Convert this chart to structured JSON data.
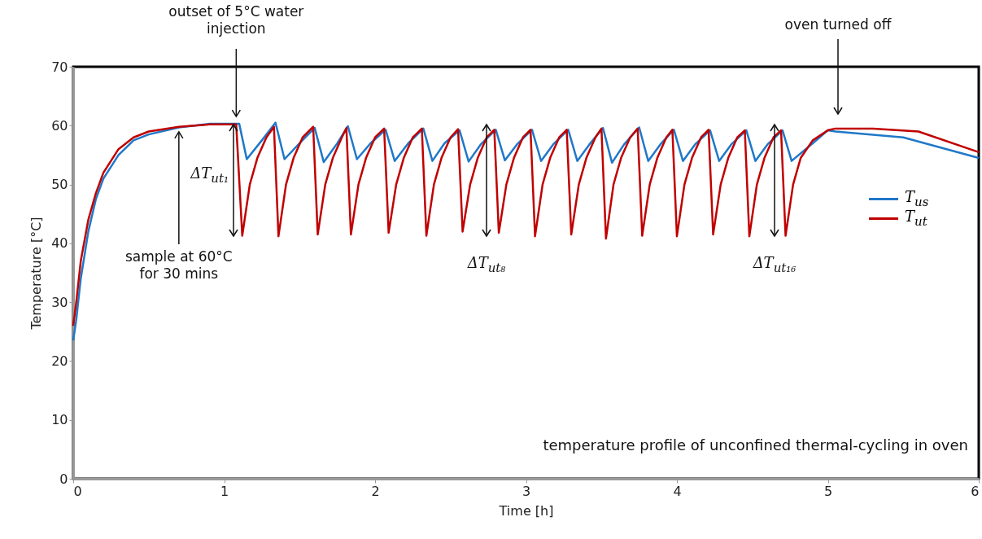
{
  "chart_data": {
    "type": "line",
    "xlabel": "Time [h]",
    "ylabel": "Temperature [°C]",
    "xlim": [
      0,
      6
    ],
    "xticks": [
      0,
      1,
      2,
      3,
      4,
      5,
      6
    ],
    "ylim": [
      0,
      70
    ],
    "yticks": [
      0,
      10,
      20,
      30,
      40,
      50,
      60,
      70
    ],
    "grid": false,
    "legend": "right",
    "line_style": "solid",
    "marker": "none",
    "series": [
      {
        "name": "T$_{us}$",
        "color": "#1f78c8",
        "x": [
          0,
          0.02,
          0.05,
          0.1,
          0.15,
          0.2,
          0.3,
          0.4,
          0.5,
          0.7,
          0.9,
          1.08,
          1.1,
          1.15,
          1.25,
          1.34,
          1.4,
          1.5,
          1.6,
          1.66,
          1.75,
          1.82,
          1.88,
          1.97,
          2.07,
          2.13,
          2.22,
          2.32,
          2.38,
          2.46,
          2.56,
          2.62,
          2.7,
          2.8,
          2.86,
          2.94,
          3.04,
          3.1,
          3.18,
          3.28,
          3.34,
          3.42,
          3.51,
          3.57,
          3.65,
          3.75,
          3.81,
          3.89,
          3.98,
          4.04,
          4.12,
          4.22,
          4.28,
          4.36,
          4.46,
          4.52,
          4.6,
          4.7,
          4.76,
          4.9,
          5.0,
          5.05,
          5.5,
          6.0
        ],
        "values": [
          23.5,
          27,
          34,
          42,
          47.5,
          51,
          55,
          57.5,
          58.5,
          59.7,
          60.3,
          60.3,
          60.3,
          54.3,
          57.5,
          60.5,
          54.3,
          57,
          59.6,
          53.8,
          57,
          59.9,
          54.3,
          57,
          59.3,
          54,
          57,
          59.5,
          54,
          57,
          59.2,
          53.9,
          56.8,
          59.3,
          54.1,
          56.8,
          59.3,
          54,
          56.8,
          59.3,
          54,
          56.8,
          59.6,
          53.7,
          56.8,
          59.7,
          54,
          56.8,
          59.3,
          54,
          56.8,
          59.2,
          54,
          56.8,
          59.2,
          54,
          56.8,
          59.2,
          54,
          57,
          59.2,
          59,
          58,
          54.5
        ]
      },
      {
        "name": "T$_{ut}$",
        "color": "#c00000",
        "x": [
          0,
          0.02,
          0.05,
          0.1,
          0.15,
          0.2,
          0.3,
          0.4,
          0.5,
          0.7,
          0.9,
          1.08,
          1.12,
          1.17,
          1.22,
          1.28,
          1.33,
          1.36,
          1.41,
          1.46,
          1.52,
          1.59,
          1.62,
          1.67,
          1.72,
          1.78,
          1.81,
          1.84,
          1.89,
          1.94,
          2.0,
          2.06,
          2.09,
          2.14,
          2.19,
          2.25,
          2.31,
          2.34,
          2.39,
          2.44,
          2.5,
          2.55,
          2.58,
          2.63,
          2.68,
          2.74,
          2.79,
          2.82,
          2.87,
          2.92,
          2.98,
          3.03,
          3.06,
          3.11,
          3.16,
          3.22,
          3.27,
          3.3,
          3.35,
          3.4,
          3.46,
          3.5,
          3.53,
          3.58,
          3.63,
          3.69,
          3.74,
          3.77,
          3.82,
          3.87,
          3.93,
          3.97,
          4.0,
          4.05,
          4.1,
          4.16,
          4.21,
          4.24,
          4.29,
          4.34,
          4.4,
          4.45,
          4.48,
          4.53,
          4.58,
          4.64,
          4.69,
          4.72,
          4.77,
          4.82,
          4.9,
          5.0,
          5.05,
          5.3,
          5.6,
          6.0
        ],
        "values": [
          26,
          30,
          37,
          44,
          48.5,
          52,
          56,
          58,
          59,
          59.8,
          60.2,
          60.2,
          41.3,
          50,
          54.5,
          58,
          59.8,
          41.2,
          50,
          54.5,
          58,
          59.8,
          41.5,
          50,
          54.5,
          58,
          59.6,
          41.5,
          50,
          54.5,
          58,
          59.5,
          41.8,
          50,
          54.5,
          58,
          59.5,
          41.3,
          50,
          54.5,
          58,
          59.4,
          42,
          50,
          54.5,
          58,
          59.3,
          41.8,
          50,
          54.5,
          58,
          59.3,
          41.2,
          50,
          54.5,
          58,
          59.3,
          41.5,
          50,
          54.5,
          58,
          59.5,
          40.8,
          50,
          54.5,
          58,
          59.5,
          41.3,
          50,
          54.5,
          58,
          59.3,
          41.2,
          50,
          54.5,
          58,
          59.3,
          41.5,
          50,
          54.5,
          58,
          59.2,
          41.2,
          50,
          54.5,
          58,
          59.2,
          41.3,
          50,
          54.5,
          57.5,
          59.2,
          59.5,
          59.5,
          59,
          55.5
        ]
      }
    ],
    "annotations": [
      {
        "text": "outset of 5°C water injection",
        "x": 1.08,
        "y": 61
      },
      "oven turned off",
      {
        "text": "sample at 60°C for 30 mins",
        "x": 0.7,
        "y": 59.5
      },
      "ΔT$_{ut₁}$",
      "ΔT$_{ut₈}$",
      "ΔT$_{ut₁₆}$",
      "temperature profile of unconfined thermal-cycling in oven"
    ]
  }
}
